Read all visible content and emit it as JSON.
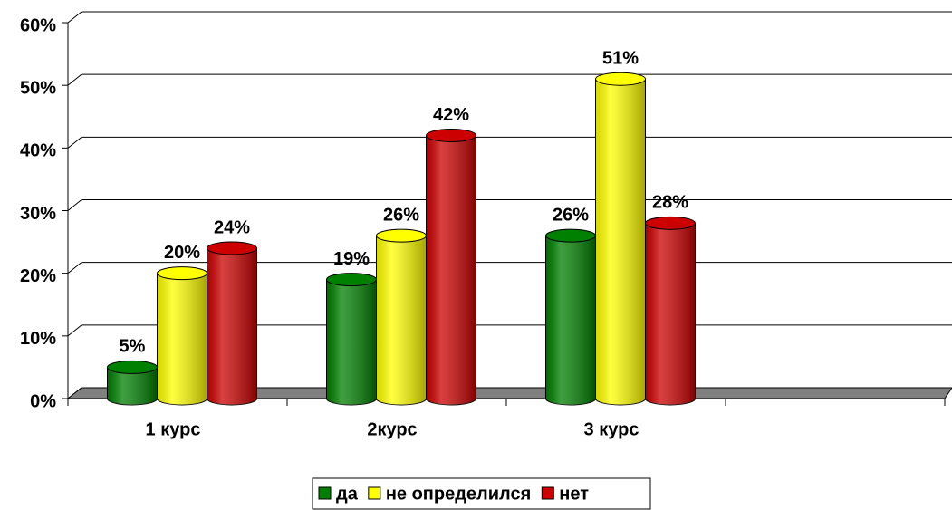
{
  "chart_data": {
    "type": "bar",
    "categories": [
      "1 курс",
      "2курс",
      "3 курс",
      null
    ],
    "series": [
      {
        "name": "да",
        "color": "#008000",
        "values": [
          5,
          19,
          26,
          null
        ],
        "value_labels": [
          "5%",
          "19%",
          "26%",
          null
        ]
      },
      {
        "name": "не определился",
        "color": "#ffff00",
        "values": [
          20,
          26,
          51,
          null
        ],
        "value_labels": [
          "20%",
          "26%",
          "51%",
          null
        ]
      },
      {
        "name": "нет",
        "color": "#cc0000",
        "values": [
          24,
          42,
          28,
          null
        ],
        "value_labels": [
          "24%",
          "42%",
          "28%",
          null
        ]
      }
    ],
    "ylim": [
      0,
      60
    ],
    "yticks": [
      {
        "value": 0,
        "label": "0%"
      },
      {
        "value": 10,
        "label": "10%"
      },
      {
        "value": 20,
        "label": "20%"
      },
      {
        "value": 30,
        "label": "30%"
      },
      {
        "value": 40,
        "label": "40%"
      },
      {
        "value": 50,
        "label": "50%"
      },
      {
        "value": 60,
        "label": "60%"
      }
    ],
    "grid": true,
    "legend": "bottom"
  }
}
